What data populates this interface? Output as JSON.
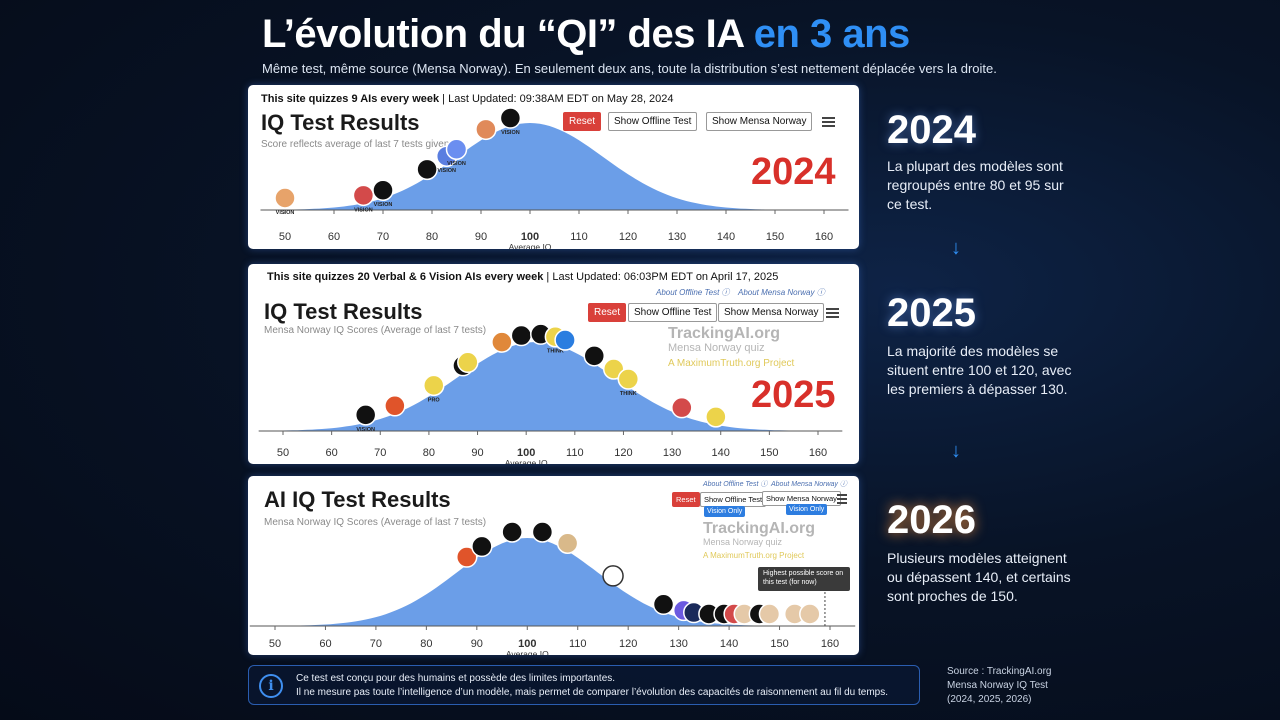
{
  "title": {
    "part1": "L’évolution du “QI” des IA ",
    "part2": "en 3 ans"
  },
  "subtitle": "Même test, même source (Mensa Norway). En seulement deux ans, toute la distribution s’est nettement déplacée vers la droite.",
  "colors": {
    "accent": "#2f8ff5",
    "reset": "#d9403a",
    "bell": "#5b93e6",
    "year_red": "#d8302a"
  },
  "cards": [
    {
      "header_bold": "This site quizzes 9 AIs every week",
      "header_rest": " | Last Updated: 09:38AM EDT on May 28, 2024",
      "title": "IQ Test Results",
      "subtitle": "Score reflects average of last 7 tests given",
      "reset": "Reset",
      "offline": "Show Offline Test",
      "mensa": "Show Mensa Norway",
      "year": "2024"
    },
    {
      "header_bold": "This site quizzes 20 Verbal & 6 Vision AIs every week",
      "header_rest": " | Last Updated: 06:03PM EDT on April 17, 2025",
      "about_offline": "About Offline Test ⓘ",
      "about_mensa": "About Mensa Norway ⓘ",
      "title": "IQ Test Results",
      "subtitle": "Mensa Norway IQ Scores (Average of last 7 tests)",
      "reset": "Reset",
      "offline": "Show Offline Test",
      "mensa": "Show Mensa Norway",
      "watermark": "TrackingAI.org",
      "watermark2": "Mensa Norway quiz",
      "watermark3": "A MaximumTruth.org Project",
      "year": "2025"
    },
    {
      "about_offline": "About Offline Test ⓘ",
      "about_mensa": "About Mensa Norway ⓘ",
      "title": "AI IQ Test Results",
      "subtitle": "Mensa Norway IQ Scores (Average of last 7 tests)",
      "reset": "Reset",
      "offline": "Show Offline Test",
      "mensa": "Show Mensa Norway",
      "vision1": "Vision Only",
      "vision2": "Vision Only",
      "watermark": "TrackingAI.org",
      "watermark2": "Mensa Norway quiz",
      "watermark3": "A MaximumTruth.org Project",
      "tooltip": "Highest possible score on this test (for now)"
    }
  ],
  "chart_data": [
    {
      "type": "scatter",
      "title": "IQ Test Results",
      "xlabel": "Average IQ",
      "xlim": [
        45,
        165
      ],
      "xticks": [
        50,
        60,
        70,
        80,
        90,
        100,
        110,
        120,
        130,
        140,
        150,
        160
      ],
      "bell_mean": 100,
      "bell_sd": 15,
      "models": [
        {
          "x": 50,
          "label": "VISION",
          "color": "#e7a36a"
        },
        {
          "x": 66,
          "label": "VISION",
          "color": "#d34a4a"
        },
        {
          "x": 70,
          "label": "VISION",
          "color": "#111111"
        },
        {
          "x": 79,
          "label": "",
          "color": "#111111"
        },
        {
          "x": 83,
          "label": "VISION",
          "color": "#5a7ee0"
        },
        {
          "x": 85,
          "label": "VISION",
          "color": "#6b8ef0"
        },
        {
          "x": 91,
          "label": "",
          "color": "#e08a5a"
        },
        {
          "x": 96,
          "label": "VISION",
          "color": "#111111"
        }
      ]
    },
    {
      "type": "scatter",
      "title": "IQ Test Results",
      "xlabel": "Average IQ",
      "xlim": [
        45,
        165
      ],
      "xticks": [
        50,
        60,
        70,
        80,
        90,
        100,
        110,
        120,
        130,
        140,
        150,
        160
      ],
      "bell_mean": 102,
      "bell_sd": 16,
      "models": [
        {
          "x": 67,
          "label": "VISION",
          "color": "#111111"
        },
        {
          "x": 73,
          "label": "",
          "color": "#e0542a"
        },
        {
          "x": 81,
          "label": "PRO",
          "color": "#ecd34a"
        },
        {
          "x": 87,
          "label": "",
          "color": "#111111"
        },
        {
          "x": 88,
          "label": "",
          "color": "#ecd34a"
        },
        {
          "x": 95,
          "label": "",
          "color": "#e0883a"
        },
        {
          "x": 99,
          "label": "",
          "color": "#111111"
        },
        {
          "x": 103,
          "label": "",
          "color": "#111111"
        },
        {
          "x": 106,
          "label": "THINK",
          "color": "#ecd34a"
        },
        {
          "x": 108,
          "label": "",
          "color": "#2a7de0"
        },
        {
          "x": 114,
          "label": "",
          "color": "#111111"
        },
        {
          "x": 118,
          "label": "",
          "color": "#ecd34a"
        },
        {
          "x": 121,
          "label": "THINK",
          "color": "#ecd34a"
        },
        {
          "x": 132,
          "label": "",
          "color": "#d34a4a"
        },
        {
          "x": 139,
          "label": "",
          "color": "#ecd34a"
        }
      ]
    },
    {
      "type": "scatter",
      "title": "AI IQ Test Results",
      "xlabel": "Average IQ",
      "xlim": [
        45,
        165
      ],
      "xticks": [
        50,
        60,
        70,
        80,
        90,
        100,
        110,
        120,
        130,
        140,
        150,
        160
      ],
      "bell_mean": 100,
      "bell_sd": 14,
      "models": [
        {
          "x": 88,
          "label": "",
          "color": "#e0542a"
        },
        {
          "x": 91,
          "label": "",
          "color": "#111111"
        },
        {
          "x": 97,
          "label": "",
          "color": "#111111"
        },
        {
          "x": 103,
          "label": "",
          "color": "#111111"
        },
        {
          "x": 108,
          "label": "",
          "color": "#d9b98a"
        },
        {
          "x": 117,
          "label": "",
          "color": "#ffffff"
        },
        {
          "x": 127,
          "label": "",
          "color": "#111111"
        },
        {
          "x": 131,
          "label": "",
          "color": "#6b5ae0"
        },
        {
          "x": 133,
          "label": "",
          "color": "#1a2a5a"
        },
        {
          "x": 136,
          "label": "",
          "color": "#111111"
        },
        {
          "x": 139,
          "label": "",
          "color": "#111111"
        },
        {
          "x": 141,
          "label": "",
          "color": "#d34a4a"
        },
        {
          "x": 143,
          "label": "",
          "color": "#e5c9a8"
        },
        {
          "x": 146,
          "label": "",
          "color": "#111111"
        },
        {
          "x": 148,
          "label": "",
          "color": "#e5c9a8"
        },
        {
          "x": 153,
          "label": "",
          "color": "#e5c9a8"
        },
        {
          "x": 156,
          "label": "",
          "color": "#e5c9a8"
        }
      ]
    }
  ],
  "years": [
    {
      "year": "2024",
      "desc": "La plupart des modèles sont regroupés entre 80 et 95 sur ce test."
    },
    {
      "year": "2025",
      "desc": "La majorité des modèles se situent entre 100 et 120, avec les premiers à dépasser 130."
    },
    {
      "year": "2026",
      "desc": "Plusieurs modèles atteignent ou dépassent 140, et certains sont proches de 150."
    }
  ],
  "arrow_glyph": "↓",
  "note": {
    "line1": "Ce test est conçu pour des humains et possède des limites importantes.",
    "line2": "Il ne mesure pas toute l’intelligence d’un modèle, mais permet de comparer l’évolution des capacités de raisonnement au fil du temps.",
    "icon": "i"
  },
  "source": {
    "line1": "Source : TrackingAI.org",
    "line2": "Mensa Norway IQ Test",
    "line3": "(2024, 2025, 2026)"
  }
}
